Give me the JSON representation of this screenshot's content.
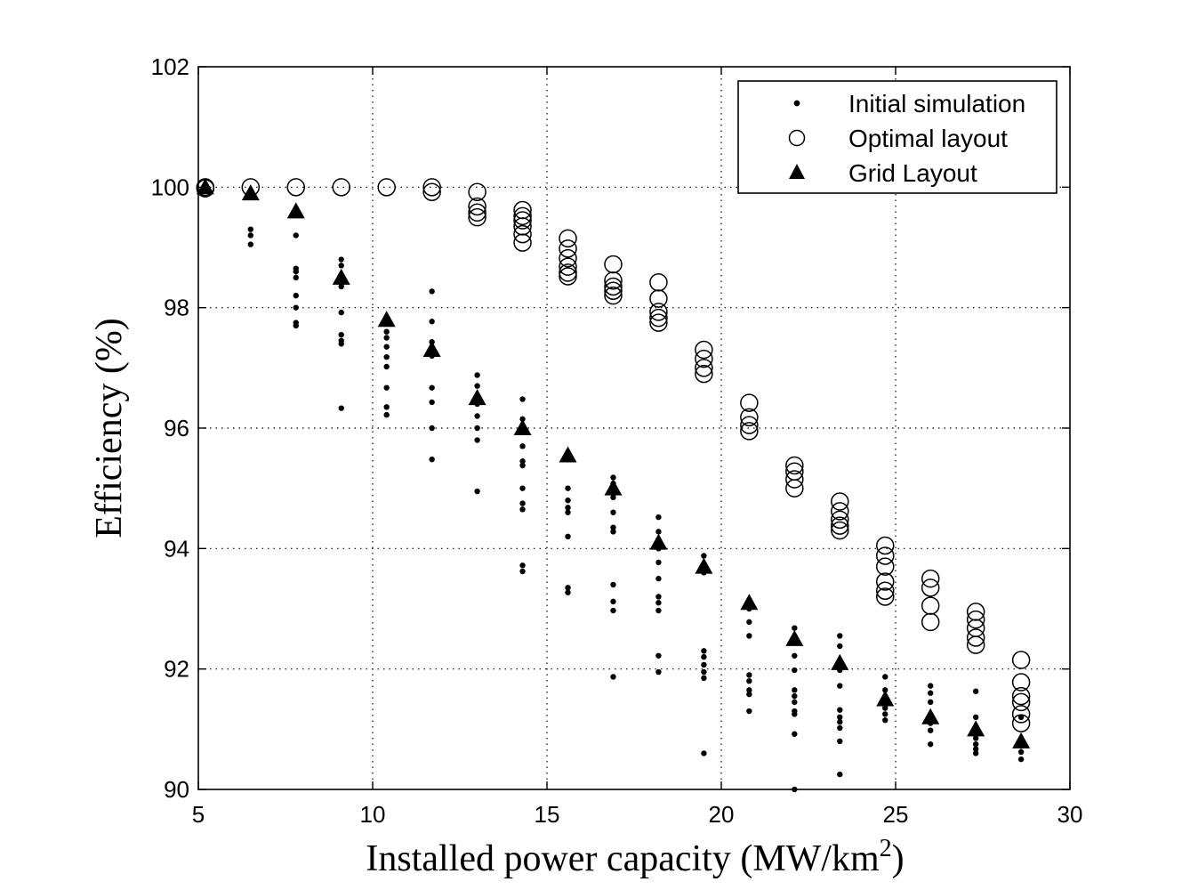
{
  "chart_data": {
    "type": "scatter",
    "title": "",
    "xlabel_main": "Installed power capacity (MW/km",
    "xlabel_sup": "2",
    "xlabel_close": ")",
    "ylabel": "Efficiency (%)",
    "xlim": [
      5,
      30
    ],
    "ylim": [
      90,
      102
    ],
    "xticks": [
      5,
      10,
      15,
      20,
      25,
      30
    ],
    "yticks": [
      90,
      92,
      94,
      96,
      98,
      100,
      102
    ],
    "grid": true,
    "legend_position": "top-right",
    "series": [
      {
        "name": "Initial simulation",
        "marker": "dot",
        "points": [
          [
            5.2,
            100.0
          ],
          [
            5.2,
            99.98
          ],
          [
            6.5,
            99.3
          ],
          [
            6.5,
            99.2
          ],
          [
            6.5,
            99.05
          ],
          [
            7.8,
            99.2
          ],
          [
            7.8,
            98.65
          ],
          [
            7.8,
            98.6
          ],
          [
            7.8,
            98.5
          ],
          [
            7.8,
            98.2
          ],
          [
            7.8,
            98.0
          ],
          [
            7.8,
            97.75
          ],
          [
            7.8,
            97.7
          ],
          [
            9.1,
            98.8
          ],
          [
            9.1,
            98.7
          ],
          [
            9.1,
            98.4
          ],
          [
            9.1,
            98.35
          ],
          [
            9.1,
            97.92
          ],
          [
            9.1,
            97.55
          ],
          [
            9.1,
            97.45
          ],
          [
            9.1,
            97.4
          ],
          [
            9.1,
            96.33
          ],
          [
            10.4,
            97.6
          ],
          [
            10.4,
            97.5
          ],
          [
            10.4,
            97.35
          ],
          [
            10.4,
            97.18
          ],
          [
            10.4,
            97.02
          ],
          [
            10.4,
            96.67
          ],
          [
            10.4,
            96.35
          ],
          [
            10.4,
            96.22
          ],
          [
            11.7,
            98.27
          ],
          [
            11.7,
            97.77
          ],
          [
            11.7,
            97.43
          ],
          [
            11.7,
            97.2
          ],
          [
            11.7,
            96.67
          ],
          [
            11.7,
            96.43
          ],
          [
            11.7,
            96.0
          ],
          [
            11.7,
            95.48
          ],
          [
            13.0,
            96.88
          ],
          [
            13.0,
            96.7
          ],
          [
            13.0,
            96.55
          ],
          [
            13.0,
            96.4
          ],
          [
            13.0,
            96.2
          ],
          [
            13.0,
            96.0
          ],
          [
            13.0,
            95.8
          ],
          [
            13.0,
            94.95
          ],
          [
            14.3,
            96.48
          ],
          [
            14.3,
            96.15
          ],
          [
            14.3,
            95.95
          ],
          [
            14.3,
            95.7
          ],
          [
            14.3,
            95.45
          ],
          [
            14.3,
            95.38
          ],
          [
            14.3,
            95.0
          ],
          [
            14.3,
            94.75
          ],
          [
            14.3,
            94.65
          ],
          [
            14.3,
            93.72
          ],
          [
            14.3,
            93.62
          ],
          [
            15.6,
            95.5
          ],
          [
            15.6,
            95.0
          ],
          [
            15.6,
            94.8
          ],
          [
            15.6,
            94.68
          ],
          [
            15.6,
            94.6
          ],
          [
            15.6,
            94.2
          ],
          [
            15.6,
            93.35
          ],
          [
            15.6,
            93.27
          ],
          [
            16.9,
            95.18
          ],
          [
            16.9,
            95.08
          ],
          [
            16.9,
            94.85
          ],
          [
            16.9,
            94.6
          ],
          [
            16.9,
            94.35
          ],
          [
            16.9,
            94.28
          ],
          [
            16.9,
            93.4
          ],
          [
            16.9,
            93.12
          ],
          [
            16.9,
            92.97
          ],
          [
            16.9,
            91.87
          ],
          [
            18.2,
            94.52
          ],
          [
            18.2,
            94.28
          ],
          [
            18.2,
            94.0
          ],
          [
            18.2,
            93.77
          ],
          [
            18.2,
            93.5
          ],
          [
            18.2,
            93.2
          ],
          [
            18.2,
            93.1
          ],
          [
            18.2,
            92.97
          ],
          [
            18.2,
            92.22
          ],
          [
            18.2,
            91.95
          ],
          [
            19.5,
            93.88
          ],
          [
            19.5,
            93.6
          ],
          [
            19.5,
            92.3
          ],
          [
            19.5,
            92.2
          ],
          [
            19.5,
            92.07
          ],
          [
            19.5,
            91.95
          ],
          [
            19.5,
            91.85
          ],
          [
            19.5,
            90.6
          ],
          [
            20.8,
            93.0
          ],
          [
            20.8,
            92.78
          ],
          [
            20.8,
            92.55
          ],
          [
            20.8,
            91.9
          ],
          [
            20.8,
            91.8
          ],
          [
            20.8,
            91.65
          ],
          [
            20.8,
            91.58
          ],
          [
            20.8,
            91.3
          ],
          [
            22.1,
            92.68
          ],
          [
            22.1,
            92.22
          ],
          [
            22.1,
            91.98
          ],
          [
            22.1,
            91.65
          ],
          [
            22.1,
            91.55
          ],
          [
            22.1,
            91.45
          ],
          [
            22.1,
            91.3
          ],
          [
            22.1,
            91.25
          ],
          [
            22.1,
            90.92
          ],
          [
            22.1,
            90.0
          ],
          [
            23.4,
            92.55
          ],
          [
            23.4,
            92.38
          ],
          [
            23.4,
            91.98
          ],
          [
            23.4,
            91.72
          ],
          [
            23.4,
            91.32
          ],
          [
            23.4,
            91.2
          ],
          [
            23.4,
            91.12
          ],
          [
            23.4,
            91.02
          ],
          [
            23.4,
            90.8
          ],
          [
            23.4,
            90.25
          ],
          [
            24.7,
            91.87
          ],
          [
            24.7,
            91.65
          ],
          [
            24.7,
            91.4
          ],
          [
            24.7,
            91.35
          ],
          [
            24.7,
            91.25
          ],
          [
            24.7,
            91.15
          ],
          [
            26.0,
            91.72
          ],
          [
            26.0,
            91.6
          ],
          [
            26.0,
            91.45
          ],
          [
            26.0,
            91.1
          ],
          [
            26.0,
            90.98
          ],
          [
            26.0,
            90.75
          ],
          [
            27.3,
            91.63
          ],
          [
            27.3,
            91.2
          ],
          [
            27.3,
            90.85
          ],
          [
            27.3,
            90.75
          ],
          [
            27.3,
            90.67
          ],
          [
            27.3,
            90.6
          ],
          [
            28.6,
            91.2
          ],
          [
            28.6,
            90.82
          ],
          [
            28.6,
            90.72
          ],
          [
            28.6,
            90.62
          ],
          [
            28.6,
            90.5
          ]
        ]
      },
      {
        "name": "Optimal layout",
        "marker": "circle",
        "points": [
          [
            5.2,
            100.0
          ],
          [
            5.2,
            99.98
          ],
          [
            6.5,
            100.0
          ],
          [
            7.8,
            100.0
          ],
          [
            9.1,
            100.0
          ],
          [
            10.4,
            100.0
          ],
          [
            11.7,
            100.0
          ],
          [
            11.7,
            99.92
          ],
          [
            13.0,
            99.92
          ],
          [
            13.0,
            99.68
          ],
          [
            13.0,
            99.58
          ],
          [
            13.0,
            99.5
          ],
          [
            14.3,
            99.62
          ],
          [
            14.3,
            99.52
          ],
          [
            14.3,
            99.45
          ],
          [
            14.3,
            99.35
          ],
          [
            14.3,
            99.22
          ],
          [
            14.3,
            99.08
          ],
          [
            15.6,
            99.15
          ],
          [
            15.6,
            98.98
          ],
          [
            15.6,
            98.82
          ],
          [
            15.6,
            98.68
          ],
          [
            15.6,
            98.58
          ],
          [
            15.6,
            98.52
          ],
          [
            16.9,
            98.72
          ],
          [
            16.9,
            98.45
          ],
          [
            16.9,
            98.35
          ],
          [
            16.9,
            98.28
          ],
          [
            16.9,
            98.2
          ],
          [
            18.2,
            98.42
          ],
          [
            18.2,
            98.15
          ],
          [
            18.2,
            97.93
          ],
          [
            18.2,
            97.83
          ],
          [
            18.2,
            97.75
          ],
          [
            19.5,
            97.3
          ],
          [
            19.5,
            97.15
          ],
          [
            19.5,
            97.0
          ],
          [
            19.5,
            96.9
          ],
          [
            20.8,
            96.42
          ],
          [
            20.8,
            96.18
          ],
          [
            20.8,
            96.05
          ],
          [
            20.8,
            95.95
          ],
          [
            22.1,
            95.38
          ],
          [
            22.1,
            95.28
          ],
          [
            22.1,
            95.15
          ],
          [
            22.1,
            95.0
          ],
          [
            23.4,
            94.78
          ],
          [
            23.4,
            94.62
          ],
          [
            23.4,
            94.48
          ],
          [
            23.4,
            94.38
          ],
          [
            23.4,
            94.3
          ],
          [
            24.7,
            94.05
          ],
          [
            24.7,
            93.88
          ],
          [
            24.7,
            93.7
          ],
          [
            24.7,
            93.45
          ],
          [
            24.7,
            93.3
          ],
          [
            24.7,
            93.2
          ],
          [
            26.0,
            93.5
          ],
          [
            26.0,
            93.35
          ],
          [
            26.0,
            93.05
          ],
          [
            26.0,
            92.78
          ],
          [
            27.3,
            92.95
          ],
          [
            27.3,
            92.82
          ],
          [
            27.3,
            92.68
          ],
          [
            27.3,
            92.52
          ],
          [
            27.3,
            92.4
          ],
          [
            28.6,
            92.15
          ],
          [
            28.6,
            91.78
          ],
          [
            28.6,
            91.55
          ],
          [
            28.6,
            91.45
          ],
          [
            28.6,
            91.25
          ],
          [
            28.6,
            91.1
          ]
        ]
      },
      {
        "name": "Grid Layout",
        "marker": "triangle",
        "points": [
          [
            5.2,
            100.0
          ],
          [
            6.5,
            99.9
          ],
          [
            7.8,
            99.6
          ],
          [
            9.1,
            98.5
          ],
          [
            10.4,
            97.8
          ],
          [
            11.7,
            97.3
          ],
          [
            13.0,
            96.5
          ],
          [
            14.3,
            96.0
          ],
          [
            15.6,
            95.55
          ],
          [
            16.9,
            95.0
          ],
          [
            18.2,
            94.1
          ],
          [
            19.5,
            93.7
          ],
          [
            20.8,
            93.1
          ],
          [
            22.1,
            92.5
          ],
          [
            23.4,
            92.1
          ],
          [
            24.7,
            91.5
          ],
          [
            26.0,
            91.2
          ],
          [
            27.3,
            91.0
          ],
          [
            28.6,
            90.8
          ]
        ]
      }
    ]
  }
}
